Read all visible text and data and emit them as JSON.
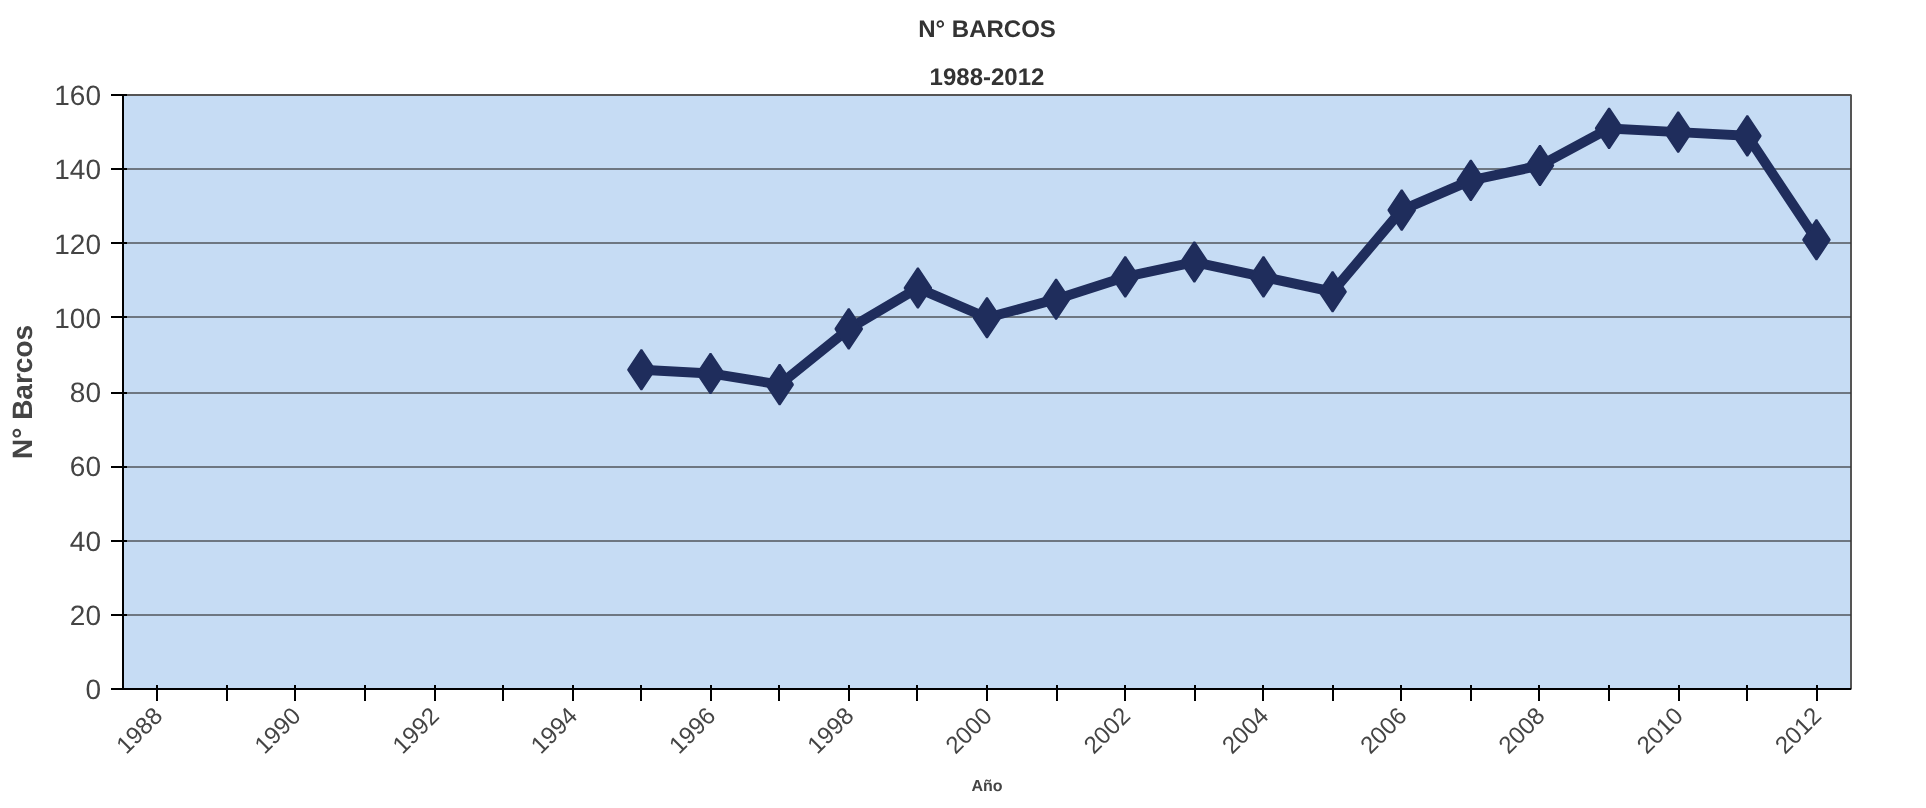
{
  "chart_data": {
    "type": "line",
    "title": "N° BARCOS",
    "subtitle": "1988-2012",
    "xlabel": "Año",
    "ylabel": "N° Barcos",
    "categories": [
      "1988",
      null,
      "1990",
      null,
      "1992",
      null,
      "1994",
      null,
      "1996",
      null,
      "1998",
      null,
      "2000",
      null,
      "2002",
      null,
      "2004",
      null,
      "2006",
      null,
      "2008",
      null,
      "2010",
      null,
      "2012"
    ],
    "series": [
      {
        "color": "#1f2d5c",
        "values": [
          null,
          null,
          null,
          null,
          null,
          null,
          null,
          86,
          85,
          82,
          97,
          108,
          100,
          105,
          111,
          115,
          111,
          107,
          129,
          137,
          141,
          151,
          150,
          149,
          121
        ]
      }
    ],
    "ylim": [
      0,
      160
    ],
    "yticks": [
      0,
      20,
      40,
      60,
      80,
      100,
      120,
      140,
      160
    ],
    "grid": "y",
    "marker": "diamond",
    "line_style": "solid"
  }
}
